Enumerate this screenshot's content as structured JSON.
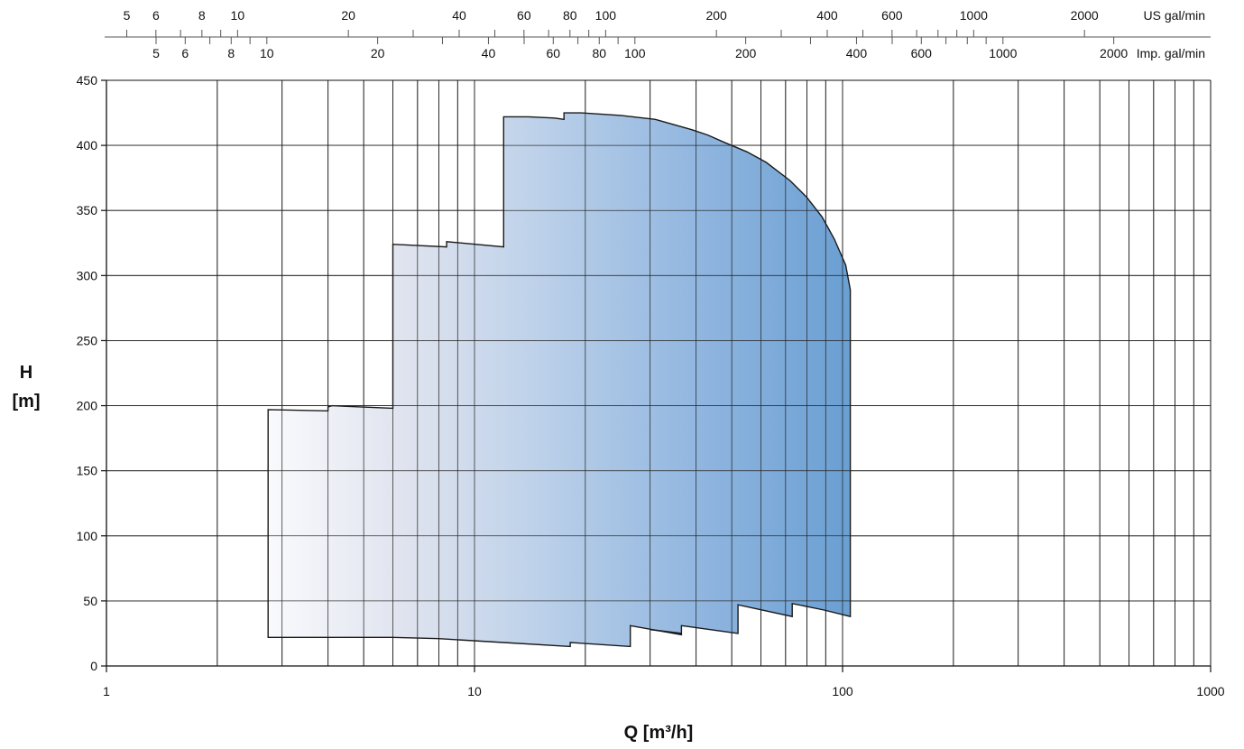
{
  "chart_data": {
    "type": "area",
    "title": "",
    "xlabel": "Q [m³/h]",
    "ylabel_line1": "H",
    "ylabel_line2": "[m]",
    "x_scale": "log",
    "xlim": [
      1,
      1000
    ],
    "ylim": [
      0,
      450
    ],
    "grid": true,
    "x_ticks": [
      "1",
      "10",
      "100",
      "1000"
    ],
    "x_gridlines": [
      2,
      3,
      4,
      5,
      6,
      7,
      8,
      9,
      20,
      30,
      40,
      50,
      60,
      70,
      80,
      90,
      200,
      300,
      400,
      500,
      600,
      700,
      800,
      900
    ],
    "y_ticks": [
      "0",
      "50",
      "100",
      "150",
      "200",
      "250",
      "300",
      "350",
      "400",
      "450"
    ],
    "top_scale_us": {
      "unit": "US gal/min",
      "labels": [
        "5",
        "6",
        "8",
        "10",
        "20",
        "40",
        "60",
        "80",
        "100",
        "200",
        "400",
        "600",
        "1000",
        "2000"
      ],
      "minor_ticks": [
        5,
        6,
        7,
        8,
        9,
        10,
        20,
        30,
        40,
        50,
        60,
        70,
        80,
        90,
        100,
        200,
        300,
        400,
        500,
        600,
        700,
        800,
        900,
        1000,
        2000
      ]
    },
    "top_scale_imp": {
      "unit": "Imp. gal/min",
      "labels": [
        "5",
        "6",
        "8",
        "10",
        "20",
        "40",
        "60",
        "80",
        "100",
        "200",
        "400",
        "600",
        "1000",
        "2000"
      ],
      "minor_ticks": [
        5,
        6,
        7,
        8,
        9,
        10,
        20,
        30,
        40,
        50,
        60,
        70,
        80,
        90,
        100,
        200,
        300,
        400,
        500,
        600,
        700,
        800,
        900,
        1000,
        2000
      ]
    },
    "gradient_colors": [
      "#fafafd",
      "#dde2ee",
      "#bfd2ea",
      "#8fb5df",
      "#6a9fd2"
    ],
    "outline_color": "#1a1a1a",
    "envelope": [
      [
        2.75,
        197
      ],
      [
        4.0,
        196
      ],
      [
        4.0,
        199
      ],
      [
        4.1,
        200
      ],
      [
        6.0,
        198
      ],
      [
        6.0,
        324
      ],
      [
        8.4,
        322
      ],
      [
        8.4,
        326
      ],
      [
        12.0,
        322
      ],
      [
        12.0,
        422
      ],
      [
        14.0,
        422
      ],
      [
        16.5,
        421
      ],
      [
        17.5,
        420
      ],
      [
        17.5,
        425
      ],
      [
        19.5,
        425
      ],
      [
        25,
        423
      ],
      [
        31,
        420
      ],
      [
        39,
        412
      ],
      [
        43,
        408
      ],
      [
        48,
        402
      ],
      [
        55,
        395
      ],
      [
        62,
        387
      ],
      [
        72,
        373
      ],
      [
        80,
        360
      ],
      [
        88,
        345
      ],
      [
        95,
        328
      ],
      [
        102,
        308
      ],
      [
        105,
        289
      ],
      [
        105,
        38
      ],
      [
        89,
        43
      ],
      [
        73,
        48
      ],
      [
        73,
        38
      ],
      [
        52,
        47
      ],
      [
        52,
        25
      ],
      [
        36.5,
        31
      ],
      [
        36.5,
        24
      ],
      [
        26.5,
        31
      ],
      [
        26.5,
        15
      ],
      [
        18.2,
        18
      ],
      [
        18.2,
        15
      ],
      [
        12.0,
        18
      ],
      [
        8.0,
        21
      ],
      [
        6.0,
        22
      ],
      [
        2.75,
        22
      ]
    ],
    "interior_lines": [
      [
        [
          30,
          28
        ],
        [
          36.5,
          25
        ]
      ]
    ]
  }
}
